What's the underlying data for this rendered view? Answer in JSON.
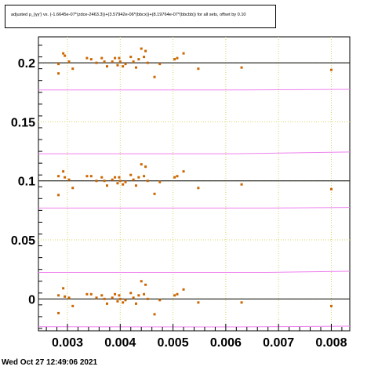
{
  "title": "adjusted ρ_{γγ'} vs. (-1.6645e-07*(zdce-2463.3))+(3.57942e-06*(bbcx))+(8.19764e-07*(bbcbb)) for all sets, offset by 0.10",
  "timestamp": "Wed Oct 27 12:49:06 2021",
  "chart_data": {
    "type": "scatter",
    "title": "adjusted ρ_{γγ'} vs. (-1.6645e-07*(zdce-2463.3))+(3.57942e-06*(bbcx))+(8.19764e-07*(bbcbb)) for all sets, offset by 0.10",
    "xlabel": "",
    "ylabel": "",
    "xlim": [
      0.00245,
      0.00835
    ],
    "ylim": [
      -0.027,
      0.222
    ],
    "x_ticks": [
      0.003,
      0.004,
      0.005,
      0.006,
      0.007,
      0.008
    ],
    "x_tick_labels": [
      "0.003",
      "0.004",
      "0.005",
      "0.006",
      "0.007",
      "0.008"
    ],
    "y_ticks": [
      0,
      0.05,
      0.1,
      0.15,
      0.2
    ],
    "y_tick_labels": [
      "0",
      "0.05",
      "0.1",
      "0.15",
      "0.2"
    ],
    "grid": true,
    "colors": {
      "points": "#cc6600",
      "reference": "#000000",
      "band": "#ee82ee",
      "grid": "#d4d46a"
    },
    "reference_lines": [
      0.0,
      0.1,
      0.2
    ],
    "band_lines": [
      {
        "x": [
          0.00245,
          0.0062,
          0.00835
        ],
        "y": [
          -0.0235,
          -0.0237,
          -0.023
        ]
      },
      {
        "x": [
          0.00245,
          0.0068,
          0.00835
        ],
        "y": [
          0.0225,
          0.0225,
          0.0235
        ]
      },
      {
        "x": [
          0.00245,
          0.0068,
          0.00835
        ],
        "y": [
          0.077,
          0.077,
          0.0775
        ]
      },
      {
        "x": [
          0.00245,
          0.0062,
          0.00835
        ],
        "y": [
          0.123,
          0.123,
          0.1245
        ]
      },
      {
        "x": [
          0.00245,
          0.0062,
          0.00835
        ],
        "y": [
          0.177,
          0.177,
          0.1775
        ]
      }
    ],
    "series": [
      {
        "x": [
          0.00283,
          0.00283,
          0.00292,
          0.00295,
          0.00303,
          0.0031,
          0.00337,
          0.00345,
          0.00355,
          0.00365,
          0.0037,
          0.00375,
          0.00385,
          0.0039,
          0.00395,
          0.00398,
          0.004,
          0.00405,
          0.0041,
          0.0042,
          0.00425,
          0.0043,
          0.00435,
          0.0044,
          0.00445,
          0.00448,
          0.00452,
          0.00465,
          0.00475,
          0.00503,
          0.00508,
          0.0052,
          0.00548,
          0.0063,
          0.008
        ],
        "y": [
          0.003,
          -0.012,
          0.009,
          0.002,
          0.001,
          -0.006,
          0.004,
          0.004,
          0.001,
          0.003,
          0.0,
          -0.004,
          0.001,
          0.004,
          -0.002,
          0.003,
          0.0,
          -0.003,
          -0.001,
          0.005,
          0.001,
          -0.004,
          0.003,
          0.015,
          0.004,
          0.012,
          0.0,
          -0.013,
          -0.001,
          0.003,
          0.004,
          0.008,
          -0.003,
          -0.003,
          -0.006
        ]
      },
      {
        "x": [
          0.00283,
          0.00283,
          0.00292,
          0.00295,
          0.00303,
          0.0031,
          0.00337,
          0.00345,
          0.00355,
          0.00365,
          0.0037,
          0.00375,
          0.00385,
          0.0039,
          0.00395,
          0.00398,
          0.004,
          0.00405,
          0.0041,
          0.0042,
          0.00425,
          0.0043,
          0.00435,
          0.0044,
          0.00445,
          0.00448,
          0.00452,
          0.00465,
          0.00475,
          0.00503,
          0.00508,
          0.0052,
          0.00548,
          0.0063,
          0.008
        ],
        "y": [
          0.104,
          0.088,
          0.108,
          0.103,
          0.101,
          0.094,
          0.104,
          0.104,
          0.1,
          0.103,
          0.1,
          0.096,
          0.101,
          0.103,
          0.098,
          0.103,
          0.1,
          0.097,
          0.099,
          0.105,
          0.101,
          0.096,
          0.103,
          0.114,
          0.104,
          0.112,
          0.1,
          0.089,
          0.099,
          0.103,
          0.104,
          0.108,
          0.094,
          0.097,
          0.093
        ]
      },
      {
        "x": [
          0.00283,
          0.00283,
          0.00292,
          0.00295,
          0.00303,
          0.0031,
          0.00337,
          0.00345,
          0.00355,
          0.00365,
          0.0037,
          0.00375,
          0.00385,
          0.0039,
          0.00395,
          0.00398,
          0.004,
          0.00405,
          0.0041,
          0.0042,
          0.00425,
          0.0043,
          0.00435,
          0.0044,
          0.00445,
          0.00448,
          0.00452,
          0.00465,
          0.00475,
          0.00503,
          0.00508,
          0.0052,
          0.00548,
          0.0063,
          0.008
        ],
        "y": [
          0.199,
          0.191,
          0.208,
          0.206,
          0.201,
          0.195,
          0.204,
          0.203,
          0.2,
          0.204,
          0.201,
          0.197,
          0.201,
          0.204,
          0.198,
          0.204,
          0.201,
          0.197,
          0.199,
          0.205,
          0.201,
          0.196,
          0.203,
          0.212,
          0.205,
          0.21,
          0.2,
          0.188,
          0.199,
          0.203,
          0.204,
          0.208,
          0.195,
          0.196,
          0.194
        ]
      }
    ]
  }
}
